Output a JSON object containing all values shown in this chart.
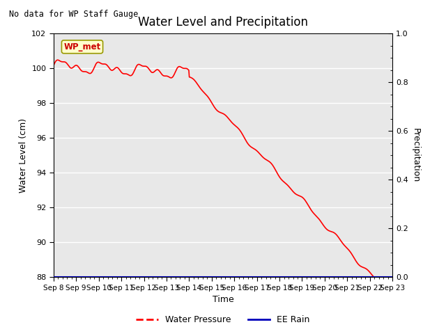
{
  "title": "Water Level and Precipitation",
  "subtitle": "No data for WP Staff Gauge",
  "xlabel": "Time",
  "ylabel_left": "Water Level (cm)",
  "ylabel_right": "Precipitation",
  "legend_label_water": "Water Pressure",
  "legend_label_rain": "EE Rain",
  "annotation_box": "WP_met",
  "water_color": "#FF0000",
  "rain_color": "#0000BB",
  "bg_color": "#E8E8E8",
  "ylim_left": [
    88,
    102
  ],
  "ylim_right": [
    0.0,
    1.0
  ],
  "yticks_left": [
    88,
    90,
    92,
    94,
    96,
    98,
    100,
    102
  ],
  "yticks_right": [
    0.0,
    0.2,
    0.4,
    0.6,
    0.8,
    1.0
  ],
  "xtick_labels": [
    "Sep 8",
    "Sep 9",
    "Sep 10",
    "Sep 11",
    "Sep 12",
    "Sep 13",
    "Sep 14",
    "Sep 15",
    "Sep 16",
    "Sep 17",
    "Sep 18",
    "Sep 19",
    "Sep 20",
    "Sep 21",
    "Sep 22",
    "Sep 23"
  ],
  "figsize": [
    6.4,
    4.8
  ],
  "dpi": 100
}
